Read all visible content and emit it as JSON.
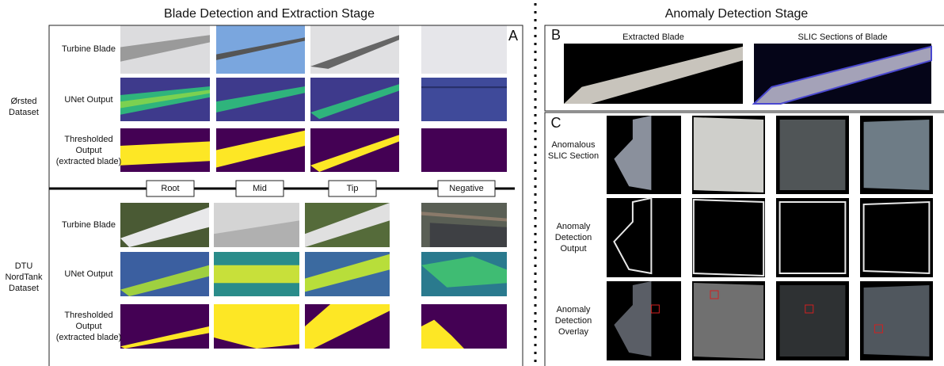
{
  "panel_a": {
    "title": "Blade Detection and Extraction Stage",
    "letter": "A",
    "row_labels": [
      [
        "Turbine Blade"
      ],
      [
        "UNet Output"
      ],
      [
        "Thresholded",
        "Output",
        "(extracted blade)"
      ]
    ],
    "dataset_labels": [
      [
        "Ørsted",
        "Dataset"
      ],
      [
        "DTU",
        "NordTank",
        "Dataset"
      ]
    ],
    "columns": [
      "Root",
      "Mid",
      "Tip",
      "Negative"
    ]
  },
  "right_title": "Anomaly Detection Stage",
  "panel_b": {
    "letter": "B",
    "captions": [
      "Extracted Blade",
      "SLIC Sections of Blade"
    ]
  },
  "panel_c": {
    "letter": "C",
    "row_labels": [
      [
        "Anomalous",
        "SLIC Section"
      ],
      [
        "Anomaly",
        "Detection",
        "Output"
      ],
      [
        "Anomaly",
        "Detection",
        "Overlay"
      ]
    ]
  }
}
